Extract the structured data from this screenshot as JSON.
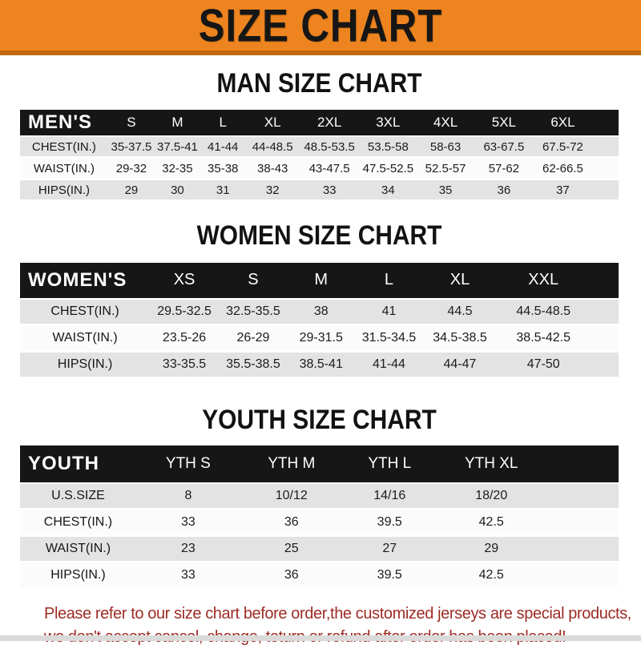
{
  "banner": {
    "title": "SIZE CHART",
    "bg_color": "#ED8420",
    "bg_dark_color": "#C4680E",
    "text_color": "#161616"
  },
  "sections": [
    {
      "heading": "MAN SIZE CHART",
      "header_label": "MEN'S",
      "columns": [
        "S",
        "M",
        "L",
        "XL",
        "2XL",
        "3XL",
        "4XL",
        "5XL",
        "6XL"
      ],
      "rows": [
        {
          "label": "CHEST(IN.)",
          "values": [
            "35-37.5",
            "37.5-41",
            "41-44",
            "44-48.5",
            "48.5-53.5",
            "53.5-58",
            "58-63",
            "63-67.5",
            "67.5-72"
          ]
        },
        {
          "label": "WAIST(IN.)",
          "values": [
            "29-32",
            "32-35",
            "35-38",
            "38-43",
            "43-47.5",
            "47.5-52.5",
            "52.5-57",
            "57-62",
            "62-66.5"
          ]
        },
        {
          "label": "HIPS(IN.)",
          "values": [
            "29",
            "30",
            "31",
            "32",
            "33",
            "34",
            "35",
            "36",
            "37"
          ]
        }
      ]
    },
    {
      "heading": "WOMEN SIZE CHART",
      "header_label": "WOMEN'S",
      "columns": [
        "XS",
        "S",
        "M",
        "L",
        "XL",
        "XXL"
      ],
      "rows": [
        {
          "label": "CHEST(IN.)",
          "values": [
            "29.5-32.5",
            "32.5-35.5",
            "38",
            "41",
            "44.5",
            "44.5-48.5"
          ]
        },
        {
          "label": "WAIST(IN.)",
          "values": [
            "23.5-26",
            "26-29",
            "29-31.5",
            "31.5-34.5",
            "34.5-38.5",
            "38.5-42.5"
          ]
        },
        {
          "label": "HIPS(IN.)",
          "values": [
            "33-35.5",
            "35.5-38.5",
            "38.5-41",
            "41-44",
            "44-47",
            "47-50"
          ]
        }
      ]
    },
    {
      "heading": "YOUTH SIZE CHART",
      "header_label": "YOUTH",
      "columns": [
        "YTH S",
        "YTH M",
        "YTH L",
        "YTH XL"
      ],
      "rows": [
        {
          "label": "U.S.SIZE",
          "values": [
            "8",
            "10/12",
            "14/16",
            "18/20"
          ]
        },
        {
          "label": "CHEST(IN.)",
          "values": [
            "33",
            "36",
            "39.5",
            "42.5"
          ]
        },
        {
          "label": "WAIST(IN.)",
          "values": [
            "23",
            "25",
            "27",
            "29"
          ]
        },
        {
          "label": "HIPS(IN.)",
          "values": [
            "33",
            "36",
            "39.5",
            "42.5"
          ]
        }
      ]
    }
  ],
  "footnote": {
    "line1": "Please refer to our size chart before order,the customized jerseys are special products,",
    "line2": "we don't accept cancel, change, teturn or refund after order has been placed!",
    "color": "#9E2B25"
  },
  "table_colors": {
    "header_bg": "#161616",
    "header_text": "#ffffff",
    "shaded_row_bg": "#e3e3e3",
    "plain_row_bg": "#fbfbfb"
  }
}
